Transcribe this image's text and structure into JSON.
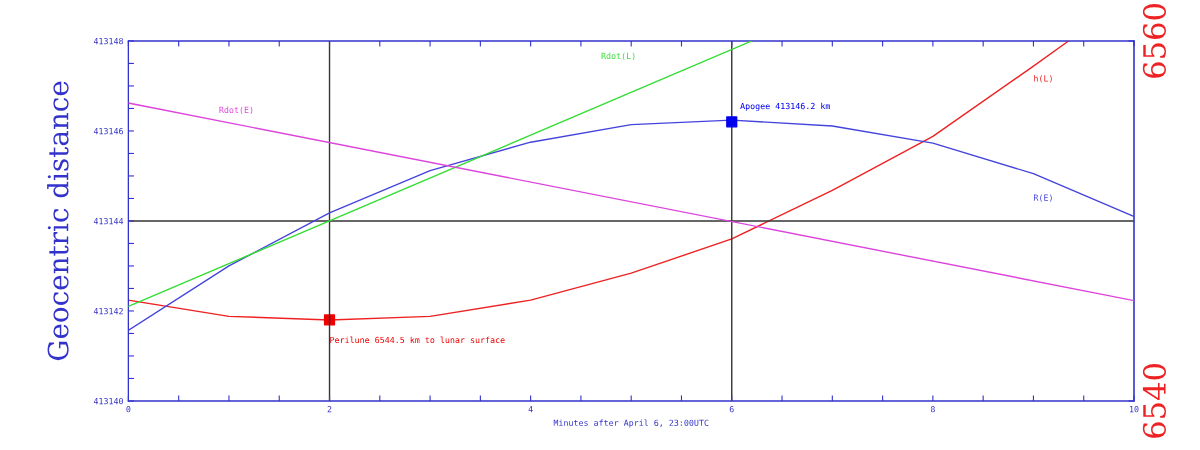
{
  "chart_data": {
    "type": "line",
    "xlabel": "Minutes after April 6, 23:00UTC",
    "ylabel": "Geocentric distance",
    "x": [
      0,
      1,
      2,
      3,
      4,
      5,
      6,
      7,
      8,
      9,
      10
    ],
    "xlim": [
      0,
      10
    ],
    "xticks": [
      0,
      {
        "value": 0.5,
        "label": null
      },
      {
        "value": 1,
        "label": null
      },
      {
        "value": 1.5,
        "label": null
      },
      2,
      {
        "value": 2.5,
        "label": null
      },
      {
        "value": 3,
        "label": null
      },
      {
        "value": 3.5,
        "label": null
      },
      4,
      {
        "value": 4.5,
        "label": null
      },
      {
        "value": 5,
        "label": null
      },
      {
        "value": 5.5,
        "label": null
      },
      6,
      {
        "value": 6.5,
        "label": null
      },
      {
        "value": 7,
        "label": null
      },
      {
        "value": 7.5,
        "label": null
      },
      8,
      {
        "value": 8.5,
        "label": null
      },
      {
        "value": 9,
        "label": null
      },
      {
        "value": 9.5,
        "label": null
      },
      10
    ],
    "ylim": [
      413140,
      413148
    ],
    "yticks": [
      413140,
      {
        "value": 413140.5,
        "label": null
      },
      {
        "value": 413141,
        "label": null
      },
      {
        "value": 413141.5,
        "label": null
      },
      413142,
      {
        "value": 413142.5,
        "label": null
      },
      {
        "value": 413143,
        "label": null
      },
      {
        "value": 413143.5,
        "label": null
      },
      413144,
      {
        "value": 413144.5,
        "label": null
      },
      {
        "value": 413145,
        "label": null
      },
      {
        "value": 413145.5,
        "label": null
      },
      413146,
      {
        "value": 413146.5,
        "label": null
      },
      {
        "value": 413147,
        "label": null
      },
      {
        "value": 413147.5,
        "label": null
      },
      413148
    ],
    "y2lim": [
      6540,
      6560
    ],
    "y2ticks": [
      6540,
      6560
    ],
    "series": [
      {
        "name": "R(E)",
        "color": "#4444dd",
        "values": [
          413141.57,
          413143.0,
          413144.18,
          413145.12,
          413145.75,
          413146.14,
          413146.24,
          413146.11,
          413145.73,
          413145.05,
          413144.1
        ]
      },
      {
        "name": "h(L)",
        "color": "#ee2222",
        "axis": "y2",
        "x": [
          0,
          1,
          2,
          3,
          4,
          5,
          6,
          7,
          8,
          9,
          9.35
        ],
        "values": [
          6545.6,
          6544.7,
          6544.5,
          6544.7,
          6545.6,
          6547.1,
          6549.0,
          6551.7,
          6554.7,
          6558.6,
          6560
        ]
      },
      {
        "name": "Rdot(L)",
        "color": "#33dd33",
        "x": [
          0,
          6.2
        ],
        "values": [
          413142.1,
          413148
        ]
      },
      {
        "name": "Rdot(E)",
        "color": "#dd44dd",
        "x": [
          0,
          10
        ],
        "values": [
          413146.62,
          413142.23
        ]
      },
      {
        "type": "scatter",
        "marker": "square",
        "color": "#ee0000",
        "axis": "y2",
        "x": [
          2
        ],
        "values": [
          6544.5
        ]
      },
      {
        "type": "scatter",
        "marker": "square",
        "color": "#0000ee",
        "x": [
          6
        ],
        "values": [
          413146.2
        ]
      }
    ],
    "ref_lines": [
      {
        "axis": "x",
        "value": 2,
        "color": "#333333"
      },
      {
        "axis": "x",
        "value": 6,
        "color": "#333333"
      },
      {
        "axis": "y",
        "value": 413144,
        "color": "#333333"
      }
    ],
    "annotations": [
      "Perilune 6544.5 km to lunar surface",
      "Apogee 413146.2 km"
    ],
    "grid": false,
    "legend": false
  }
}
